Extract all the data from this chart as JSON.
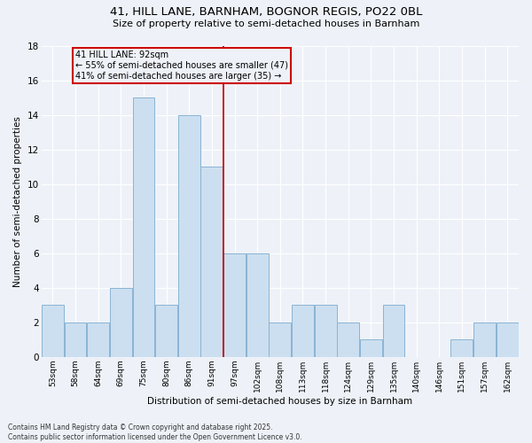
{
  "title1": "41, HILL LANE, BARNHAM, BOGNOR REGIS, PO22 0BL",
  "title2": "Size of property relative to semi-detached houses in Barnham",
  "xlabel": "Distribution of semi-detached houses by size in Barnham",
  "ylabel": "Number of semi-detached properties",
  "bar_color": "#ccdff0",
  "bar_edge_color": "#8ab4d4",
  "bg_color": "#eef2f8",
  "grid_color": "#ffffff",
  "categories": [
    "53sqm",
    "58sqm",
    "64sqm",
    "69sqm",
    "75sqm",
    "80sqm",
    "86sqm",
    "91sqm",
    "97sqm",
    "102sqm",
    "108sqm",
    "113sqm",
    "118sqm",
    "124sqm",
    "129sqm",
    "135sqm",
    "140sqm",
    "146sqm",
    "151sqm",
    "157sqm",
    "162sqm"
  ],
  "values": [
    3,
    2,
    2,
    4,
    15,
    3,
    14,
    11,
    6,
    6,
    2,
    3,
    3,
    2,
    1,
    3,
    0,
    0,
    1,
    2,
    2
  ],
  "subject_label": "41 HILL LANE: 92sqm",
  "pct_smaller": "55% of semi-detached houses are smaller (47)",
  "pct_larger": "41% of semi-detached houses are larger (35)",
  "annotation_box_color": "#cc0000",
  "subject_line_color": "#cc0000",
  "ylim": [
    0,
    18
  ],
  "yticks": [
    0,
    2,
    4,
    6,
    8,
    10,
    12,
    14,
    16,
    18
  ],
  "footer1": "Contains HM Land Registry data © Crown copyright and database right 2025.",
  "footer2": "Contains public sector information licensed under the Open Government Licence v3.0."
}
